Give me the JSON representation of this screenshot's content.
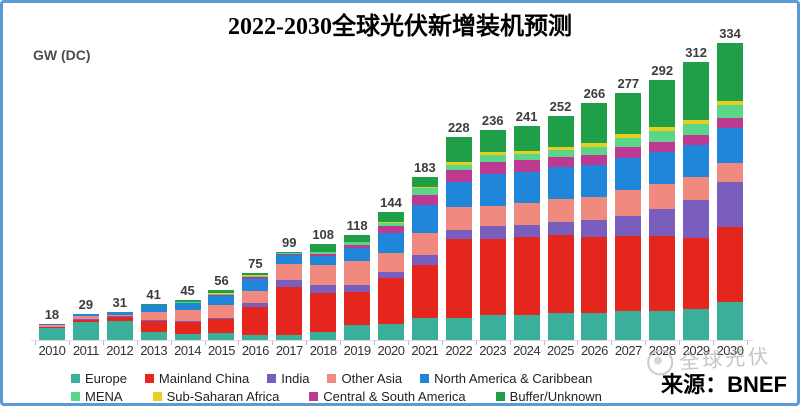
{
  "window": {
    "kind": "article-chart-image"
  },
  "chart_data": {
    "type": "bar",
    "stacked": true,
    "title": "2022-2030全球光伏新增装机预测",
    "unit_label": "GW (DC)",
    "source_label": "来源：BNEF",
    "watermark": "全球光伏",
    "grid": false,
    "legend_position": "bottom",
    "ylim": [
      0,
      340
    ],
    "categories": [
      "2010",
      "2011",
      "2012",
      "2013",
      "2014",
      "2015",
      "2016",
      "2017",
      "2018",
      "2019",
      "2020",
      "2021",
      "2022",
      "2023",
      "2024",
      "2025",
      "2026",
      "2027",
      "2028",
      "2029",
      "2030"
    ],
    "totals": [
      18,
      29,
      31,
      41,
      45,
      56,
      75,
      99,
      108,
      118,
      144,
      183,
      228,
      236,
      241,
      252,
      266,
      277,
      292,
      312,
      334
    ],
    "series": [
      {
        "name": "Europe",
        "color": "#3AAF9C",
        "values": [
          14,
          20,
          21,
          9,
          7,
          8,
          6,
          6,
          9,
          17,
          18,
          25,
          25,
          28,
          28,
          30,
          30,
          32,
          33,
          35,
          43
        ]
      },
      {
        "name": "Mainland China",
        "color": "#E5261D",
        "values": [
          1,
          3,
          5,
          12,
          13,
          15,
          31,
          53,
          44,
          37,
          52,
          59,
          88,
          85,
          88,
          88,
          86,
          85,
          84,
          80,
          84
        ]
      },
      {
        "name": "India",
        "color": "#7A5EBE",
        "values": [
          0,
          0.5,
          0.5,
          1,
          1,
          2,
          4,
          8,
          9,
          8,
          6,
          11,
          11,
          15,
          13,
          15,
          19,
          22,
          30,
          42,
          50
        ]
      },
      {
        "name": "Other Asia",
        "color": "#F08A7E",
        "values": [
          2,
          3,
          2,
          10,
          13,
          14,
          14,
          18,
          22,
          27,
          22,
          25,
          25,
          23,
          25,
          25,
          26,
          30,
          28,
          26,
          22
        ]
      },
      {
        "name": "North America & Caribbean",
        "color": "#1F86D9",
        "values": [
          1,
          2.5,
          2.5,
          7,
          8,
          10,
          14,
          10,
          10,
          14,
          22,
          32,
          29,
          36,
          35,
          36,
          36,
          36,
          36,
          36,
          39
        ]
      },
      {
        "name": "Central & South America",
        "color": "#BE3A92",
        "values": [
          0,
          0,
          0,
          0,
          0,
          2,
          2,
          2,
          3,
          4,
          8,
          11,
          13,
          13,
          13,
          12,
          11,
          12,
          12,
          11,
          11
        ]
      },
      {
        "name": "MENA",
        "color": "#5BD689",
        "values": [
          0,
          0,
          0,
          0,
          1,
          1,
          1,
          1,
          2,
          3,
          4,
          8,
          6,
          8,
          7,
          8,
          9,
          10,
          12,
          13,
          15
        ]
      },
      {
        "name": "Sub-Saharan Africa",
        "color": "#E8CE1F",
        "values": [
          0,
          0,
          0,
          0,
          0,
          1,
          1,
          0,
          0,
          0,
          1,
          1,
          3,
          3,
          3,
          3,
          4,
          4,
          4,
          4,
          5
        ]
      },
      {
        "name": "Buffer/Unknown",
        "color": "#1FA048",
        "values": [
          0,
          0,
          0,
          2,
          2,
          3,
          2,
          1,
          9,
          8,
          11,
          11,
          28,
          25,
          29,
          35,
          45,
          46,
          53,
          65,
          65
        ]
      }
    ],
    "legend_rows": [
      [
        "Europe",
        "Mainland China",
        "India",
        "Other Asia",
        "North America & Caribbean"
      ],
      [
        "MENA",
        "Sub-Saharan Africa",
        "Central & South America",
        "Buffer/Unknown"
      ]
    ]
  }
}
